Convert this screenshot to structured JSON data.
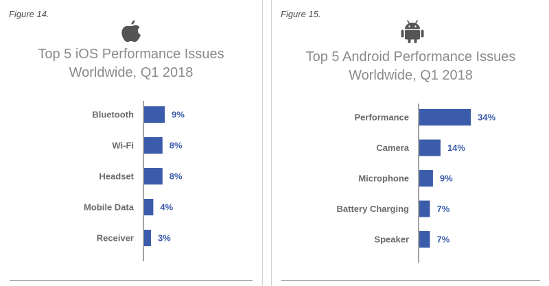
{
  "colors": {
    "bar": "#3b5bab",
    "value_text": "#3b5bab",
    "category_text": "#6a6a6a",
    "title_text": "#8a8a8a",
    "axis": "#444444"
  },
  "figures": [
    {
      "label": "Figure 14.",
      "logo_icon": "apple-logo-icon",
      "title_line1": "Top 5 iOS Performance Issues",
      "title_line2": "Worldwide, Q1 2018"
    },
    {
      "label": "Figure 15.",
      "logo_icon": "android-logo-icon",
      "title_line1": "Top 5 Android Performance Issues",
      "title_line2": "Worldwide, Q1 2018"
    }
  ],
  "chart_data": [
    {
      "type": "bar",
      "orientation": "horizontal",
      "title": "Top 5 iOS Performance Issues Worldwide, Q1 2018",
      "categories": [
        "Bluetooth",
        "Wi-Fi",
        "Headset",
        "Mobile Data",
        "Receiver"
      ],
      "values": [
        9,
        8,
        8,
        4,
        3
      ],
      "value_labels": [
        "9%",
        "8%",
        "8%",
        "4%",
        "3%"
      ],
      "unit": "%",
      "grid": false,
      "legend": "none"
    },
    {
      "type": "bar",
      "orientation": "horizontal",
      "title": "Top 5 Android Performance Issues Worldwide, Q1 2018",
      "categories": [
        "Performance",
        "Camera",
        "Microphone",
        "Battery Charging",
        "Speaker"
      ],
      "values": [
        34,
        14,
        9,
        7,
        7
      ],
      "value_labels": [
        "34%",
        "14%",
        "9%",
        "7%",
        "7%"
      ],
      "unit": "%",
      "grid": false,
      "legend": "none"
    }
  ]
}
